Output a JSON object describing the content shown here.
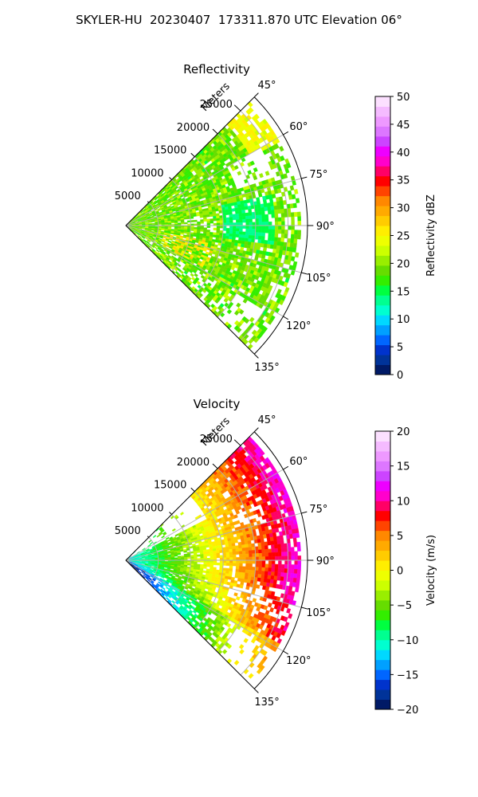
{
  "suptitle": "SKYLER-HU  20230407  173311.870 UTC Elevation 06°",
  "chart_data": [
    {
      "type": "heatmap",
      "title": "Reflectivity",
      "projection": "polar-sector",
      "radial_label": "Meters",
      "radial_ticks": [
        5000,
        10000,
        15000,
        20000,
        25000
      ],
      "radial_tick_labels": [
        "5000",
        "10000",
        "15000",
        "20000",
        "25000"
      ],
      "angle_ticks": [
        45,
        60,
        75,
        90,
        105,
        120,
        135
      ],
      "angle_tick_labels": [
        "45°",
        "60°",
        "75°",
        "90°",
        "105°",
        "120°",
        "135°"
      ],
      "theta_range": [
        45,
        135
      ],
      "r_max": 28000,
      "grid": true,
      "colorbar": {
        "label": "Reflectivity dBZ",
        "min": 0,
        "max": 50,
        "ticks": [
          0,
          5,
          10,
          15,
          20,
          25,
          30,
          35,
          40,
          45,
          50
        ],
        "tick_labels": [
          "0",
          "5",
          "10",
          "15",
          "20",
          "25",
          "30",
          "35",
          "40",
          "45",
          "50"
        ],
        "colors": [
          "#001a66",
          "#003399",
          "#0033cc",
          "#0066ff",
          "#00a0ff",
          "#00d8ff",
          "#00ffd0",
          "#00ff90",
          "#00ff40",
          "#33ee00",
          "#66dd00",
          "#99ee00",
          "#ccff00",
          "#eeff00",
          "#ffee00",
          "#ffcc00",
          "#ffaa00",
          "#ff8800",
          "#ff4400",
          "#ff0000",
          "#ff0066",
          "#ff00cc",
          "#ee00ff",
          "#cc44ff",
          "#dd77ff",
          "#ee99ff",
          "#f5bbff",
          "#fce0ff"
        ]
      },
      "field_summary": "mostly 15–25 dBZ echoes (green) with a 10–15 dBZ (cyan) pocket near 20000 m at 80–95°, isolated 25–30 dBZ (yellow) cells"
    },
    {
      "type": "heatmap",
      "title": "Velocity",
      "projection": "polar-sector",
      "radial_label": "Meters",
      "radial_ticks": [
        5000,
        10000,
        15000,
        20000,
        25000
      ],
      "radial_tick_labels": [
        "5000",
        "10000",
        "15000",
        "20000",
        "25000"
      ],
      "angle_ticks": [
        45,
        60,
        75,
        90,
        105,
        120,
        135
      ],
      "angle_tick_labels": [
        "45°",
        "60°",
        "75°",
        "90°",
        "105°",
        "120°",
        "135°"
      ],
      "theta_range": [
        45,
        135
      ],
      "r_max": 28000,
      "grid": true,
      "colorbar": {
        "label": "Velocity (m/s)",
        "min": -20,
        "max": 20,
        "ticks": [
          -20,
          -15,
          -10,
          -5,
          0,
          5,
          10,
          15,
          20
        ],
        "tick_labels": [
          "−20",
          "−15",
          "−10",
          "−5",
          "0",
          "5",
          "10",
          "15",
          "20"
        ],
        "colors": [
          "#001a66",
          "#003399",
          "#0033cc",
          "#0066ff",
          "#00a0ff",
          "#00d8ff",
          "#00ffd0",
          "#00ff90",
          "#00ff40",
          "#33ee00",
          "#66dd00",
          "#99ee00",
          "#ccff00",
          "#eeff00",
          "#ffee00",
          "#ffcc00",
          "#ffaa00",
          "#ff8800",
          "#ff4400",
          "#ff0000",
          "#ff0066",
          "#ff00cc",
          "#ee00ff",
          "#cc44ff",
          "#dd77ff",
          "#ee99ff",
          "#f5bbff",
          "#fce0ff"
        ]
      },
      "field_summary": "about −12 m/s near radar at 60–80°, grading to 0–5 m/s at mid range and 12–17 m/s beyond 17000 m at 60–100°; 0–8 m/s toward 110–135°"
    }
  ]
}
